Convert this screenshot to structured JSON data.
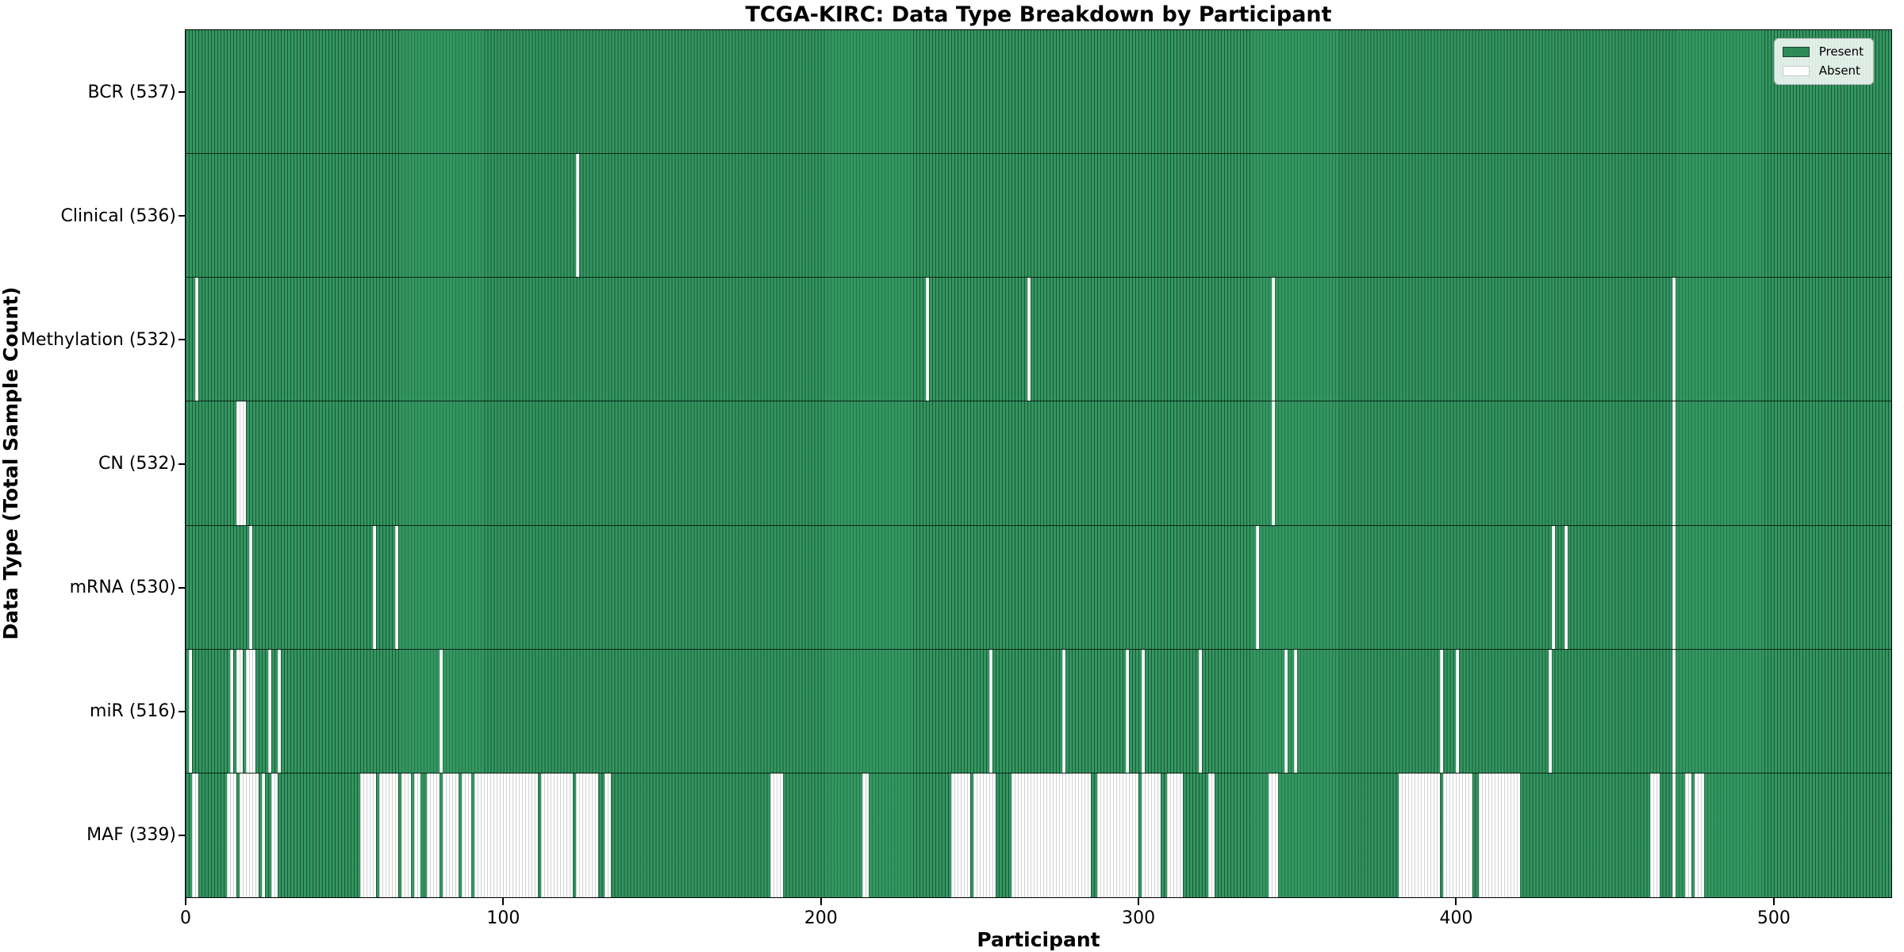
{
  "title": "TCGA-KIRC: Data Type Breakdown by Participant",
  "axes": {
    "x_label": "Participant",
    "y_label": "Data Type (Total Sample Count)",
    "x_ticks": [
      0,
      100,
      200,
      300,
      400,
      500
    ]
  },
  "legend": {
    "items": [
      {
        "label": "Present",
        "color": "#2e8b57"
      },
      {
        "label": "Absent",
        "color": "#ffffff"
      }
    ]
  },
  "colors": {
    "present_fill": "#339660",
    "bar_edge": "rgba(6,36,22,0.55)",
    "absent_fill": "#ffffff",
    "spine": "#000000"
  },
  "chart_data": {
    "type": "heatmap",
    "title": "TCGA-KIRC: Data Type Breakdown by Participant",
    "xlabel": "Participant",
    "ylabel": "Data Type (Total Sample Count)",
    "x_domain": [
      0,
      537
    ],
    "x_ticks": [
      0,
      100,
      200,
      300,
      400,
      500
    ],
    "legend_entries": [
      "Present",
      "Absent"
    ],
    "grid": false,
    "legend_position": "upper right",
    "rows": [
      {
        "name": "BCR",
        "label": "BCR (537)",
        "present_count": 537,
        "absent_ranges": []
      },
      {
        "name": "Clinical",
        "label": "Clinical (536)",
        "present_count": 536,
        "absent_ranges": [
          [
            123,
            123
          ]
        ]
      },
      {
        "name": "Methylation",
        "label": "Methylation (532)",
        "present_count": 532,
        "absent_ranges": [
          [
            3,
            3
          ],
          [
            233,
            233
          ],
          [
            265,
            265
          ],
          [
            342,
            342
          ],
          [
            468,
            468
          ]
        ]
      },
      {
        "name": "CN",
        "label": "CN (532)",
        "present_count": 532,
        "absent_ranges": [
          [
            16,
            18
          ],
          [
            342,
            342
          ],
          [
            468,
            468
          ]
        ]
      },
      {
        "name": "mRNA",
        "label": "mRNA (530)",
        "present_count": 530,
        "absent_ranges": [
          [
            20,
            20
          ],
          [
            59,
            59
          ],
          [
            66,
            66
          ],
          [
            337,
            337
          ],
          [
            430,
            430
          ],
          [
            434,
            434
          ],
          [
            468,
            468
          ]
        ]
      },
      {
        "name": "miR",
        "label": "miR (516)",
        "present_count": 516,
        "absent_ranges": [
          [
            1,
            1
          ],
          [
            14,
            14
          ],
          [
            16,
            17
          ],
          [
            19,
            21
          ],
          [
            26,
            26
          ],
          [
            29,
            29
          ],
          [
            80,
            80
          ],
          [
            253,
            253
          ],
          [
            276,
            276
          ],
          [
            296,
            296
          ],
          [
            301,
            301
          ],
          [
            319,
            319
          ],
          [
            346,
            346
          ],
          [
            349,
            349
          ],
          [
            395,
            395
          ],
          [
            400,
            400
          ],
          [
            429,
            429
          ],
          [
            468,
            468
          ]
        ]
      },
      {
        "name": "MAF",
        "label": "MAF (339)",
        "present_count": 339,
        "absent_ranges": [
          [
            2,
            3
          ],
          [
            13,
            15
          ],
          [
            17,
            22
          ],
          [
            24,
            24
          ],
          [
            27,
            28
          ],
          [
            55,
            59
          ],
          [
            61,
            66
          ],
          [
            68,
            70
          ],
          [
            72,
            73
          ],
          [
            76,
            79
          ],
          [
            81,
            85
          ],
          [
            87,
            89
          ],
          [
            91,
            110
          ],
          [
            112,
            121
          ],
          [
            123,
            129
          ],
          [
            132,
            133
          ],
          [
            184,
            187
          ],
          [
            213,
            214
          ],
          [
            241,
            246
          ],
          [
            248,
            254
          ],
          [
            260,
            284
          ],
          [
            287,
            299
          ],
          [
            301,
            306
          ],
          [
            309,
            313
          ],
          [
            322,
            323
          ],
          [
            341,
            343
          ],
          [
            382,
            394
          ],
          [
            396,
            404
          ],
          [
            407,
            419
          ],
          [
            461,
            463
          ],
          [
            468,
            468
          ],
          [
            472,
            473
          ],
          [
            475,
            477
          ]
        ]
      }
    ]
  }
}
